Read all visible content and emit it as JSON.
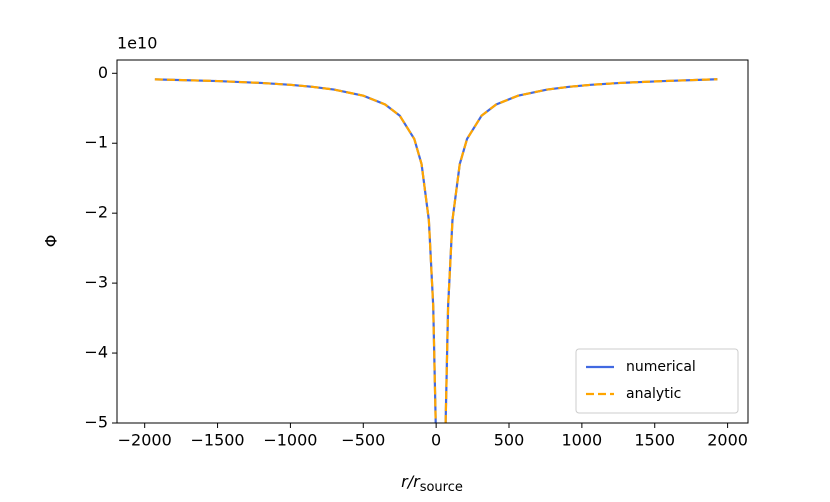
{
  "chart_data": {
    "type": "line",
    "offset_label": "1e10",
    "ylabel": "Φ",
    "xlabel": {
      "main": "r/r",
      "sub": "source"
    },
    "x": [
      -1930,
      -1500,
      -1200,
      -1000,
      -850,
      -700,
      -500,
      -350,
      -250,
      -150,
      -100,
      -50,
      -20,
      -3,
      31,
      65,
      82,
      112,
      162,
      212,
      312,
      412,
      562,
      762,
      912,
      1062,
      1262,
      1562,
      1930
    ],
    "series": [
      {
        "name": "numerical",
        "color": "#4169e1",
        "dash": false,
        "values": [
          -0.087,
          -0.111,
          -0.138,
          -0.165,
          -0.193,
          -0.233,
          -0.32,
          -0.446,
          -0.605,
          -0.939,
          -1.298,
          -2.099,
          -3.333,
          -5.0,
          null,
          -5.0,
          -3.333,
          -2.099,
          -1.298,
          -0.939,
          -0.605,
          -0.446,
          -0.32,
          -0.233,
          -0.193,
          -0.165,
          -0.138,
          -0.111,
          -0.085
        ]
      },
      {
        "name": "analytic",
        "color": "#ffa500",
        "dash": true,
        "values": [
          -0.087,
          -0.111,
          -0.138,
          -0.165,
          -0.193,
          -0.233,
          -0.32,
          -0.446,
          -0.605,
          -0.939,
          -1.298,
          -2.099,
          -3.333,
          -5.0,
          null,
          -5.0,
          -3.333,
          -2.099,
          -1.298,
          -0.939,
          -0.605,
          -0.446,
          -0.32,
          -0.233,
          -0.193,
          -0.165,
          -0.138,
          -0.111,
          -0.085
        ]
      }
    ],
    "xlim": [
      -2190,
      2140
    ],
    "ylim": [
      -5,
      0.19
    ],
    "xticks": [
      {
        "value": -2000,
        "label": "−2000"
      },
      {
        "value": -1500,
        "label": "−1500"
      },
      {
        "value": -1000,
        "label": "−1000"
      },
      {
        "value": -500,
        "label": "−500"
      },
      0,
      500,
      1000,
      1500,
      2000
    ],
    "yticks": [
      0,
      {
        "value": -1,
        "label": "−1"
      },
      {
        "value": -2,
        "label": "−2"
      },
      {
        "value": -3,
        "label": "−3"
      },
      {
        "value": -4,
        "label": "−4"
      },
      {
        "value": -5,
        "label": "−5"
      }
    ],
    "legend": "lower right"
  }
}
